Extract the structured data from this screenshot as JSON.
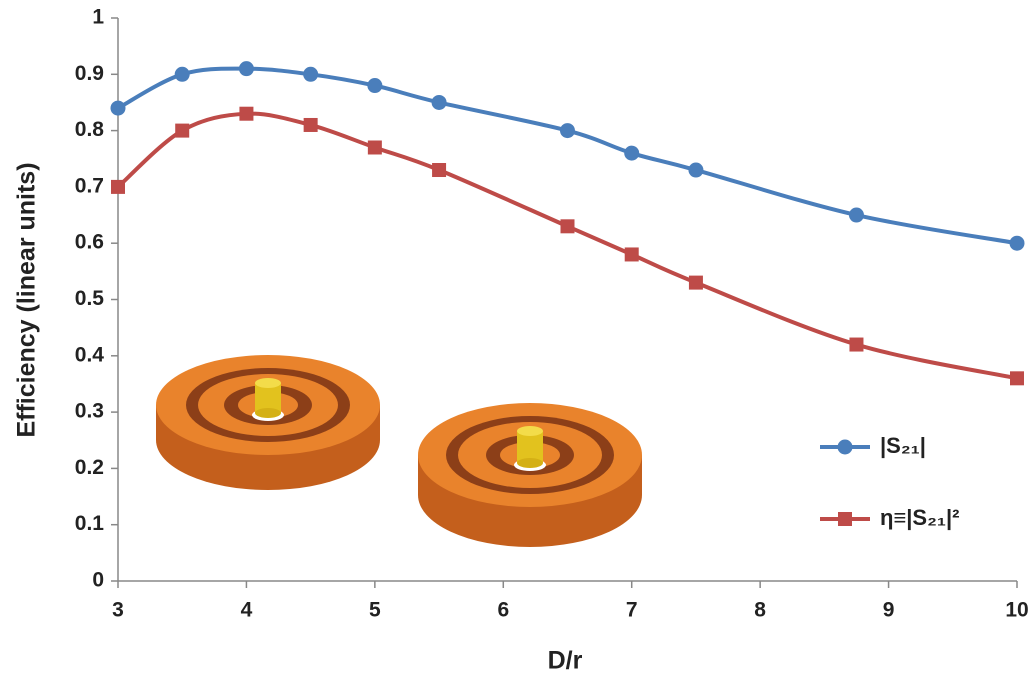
{
  "chart_data": {
    "type": "line",
    "x": [
      3,
      3.5,
      4,
      4.5,
      5,
      5.5,
      6.5,
      7,
      7.5,
      8.75,
      10
    ],
    "series": [
      {
        "name": "|S₂₁|",
        "color": "#4a7ebb",
        "marker": "circle",
        "values": [
          0.84,
          0.9,
          0.91,
          0.9,
          0.88,
          0.85,
          0.8,
          0.76,
          0.73,
          0.65,
          0.6
        ]
      },
      {
        "name": "η≡|S₂₁|²",
        "color": "#be4b48",
        "marker": "square",
        "values": [
          0.7,
          0.8,
          0.83,
          0.81,
          0.77,
          0.73,
          0.63,
          0.58,
          0.53,
          0.42,
          0.36
        ]
      }
    ],
    "x_label": "D/r",
    "y_label": "Efficiency (linear units)",
    "xlim": [
      3,
      10
    ],
    "xticks": [
      3,
      4,
      5,
      6,
      7,
      8,
      9,
      10
    ],
    "ylim": [
      0,
      1
    ],
    "yticks": [
      0,
      0.1,
      0.2,
      0.3,
      0.4,
      0.5,
      0.6,
      0.7,
      0.8,
      0.9,
      1
    ],
    "grid": false,
    "smooth": true,
    "legend": "right"
  }
}
